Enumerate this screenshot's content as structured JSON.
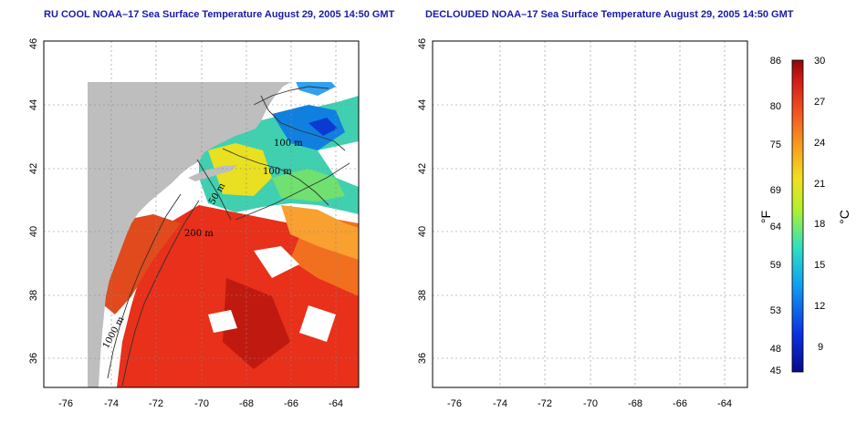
{
  "panels": [
    {
      "id": "left",
      "title": "RU COOL NOAA–17 Sea Surface Temperature August 29, 2005 14:50 GMT"
    },
    {
      "id": "right",
      "title": "DECLOUDED NOAA–17 Sea Surface Temperature August 29, 2005 14:50 GMT"
    }
  ],
  "axes": {
    "lon_ticks": [
      "-76",
      "-74",
      "-72",
      "-70",
      "-68",
      "-66",
      "-64"
    ],
    "lat_ticks": [
      "36",
      "38",
      "40",
      "42",
      "44",
      "46"
    ],
    "lon_range": [
      -77.5,
      -63
    ],
    "lat_range": [
      35,
      46
    ]
  },
  "contour_labels": [
    "100 m",
    "100 m",
    "50 m",
    "200 m",
    "1000 m"
  ],
  "colorbar": {
    "fahrenheit_ticks": [
      "86",
      "80",
      "75",
      "69",
      "64",
      "59",
      "53",
      "48",
      "45"
    ],
    "celsius_ticks": [
      "30",
      "27",
      "24",
      "21",
      "18",
      "15",
      "12",
      "9"
    ],
    "fahrenheit_label": "°F",
    "celsius_label": "°C",
    "range_celsius": [
      7,
      30
    ]
  },
  "colors": {
    "land": "#bebebe",
    "cloud": "#ffffff",
    "warm": "#e8301a",
    "title": "#1a1aa6"
  }
}
